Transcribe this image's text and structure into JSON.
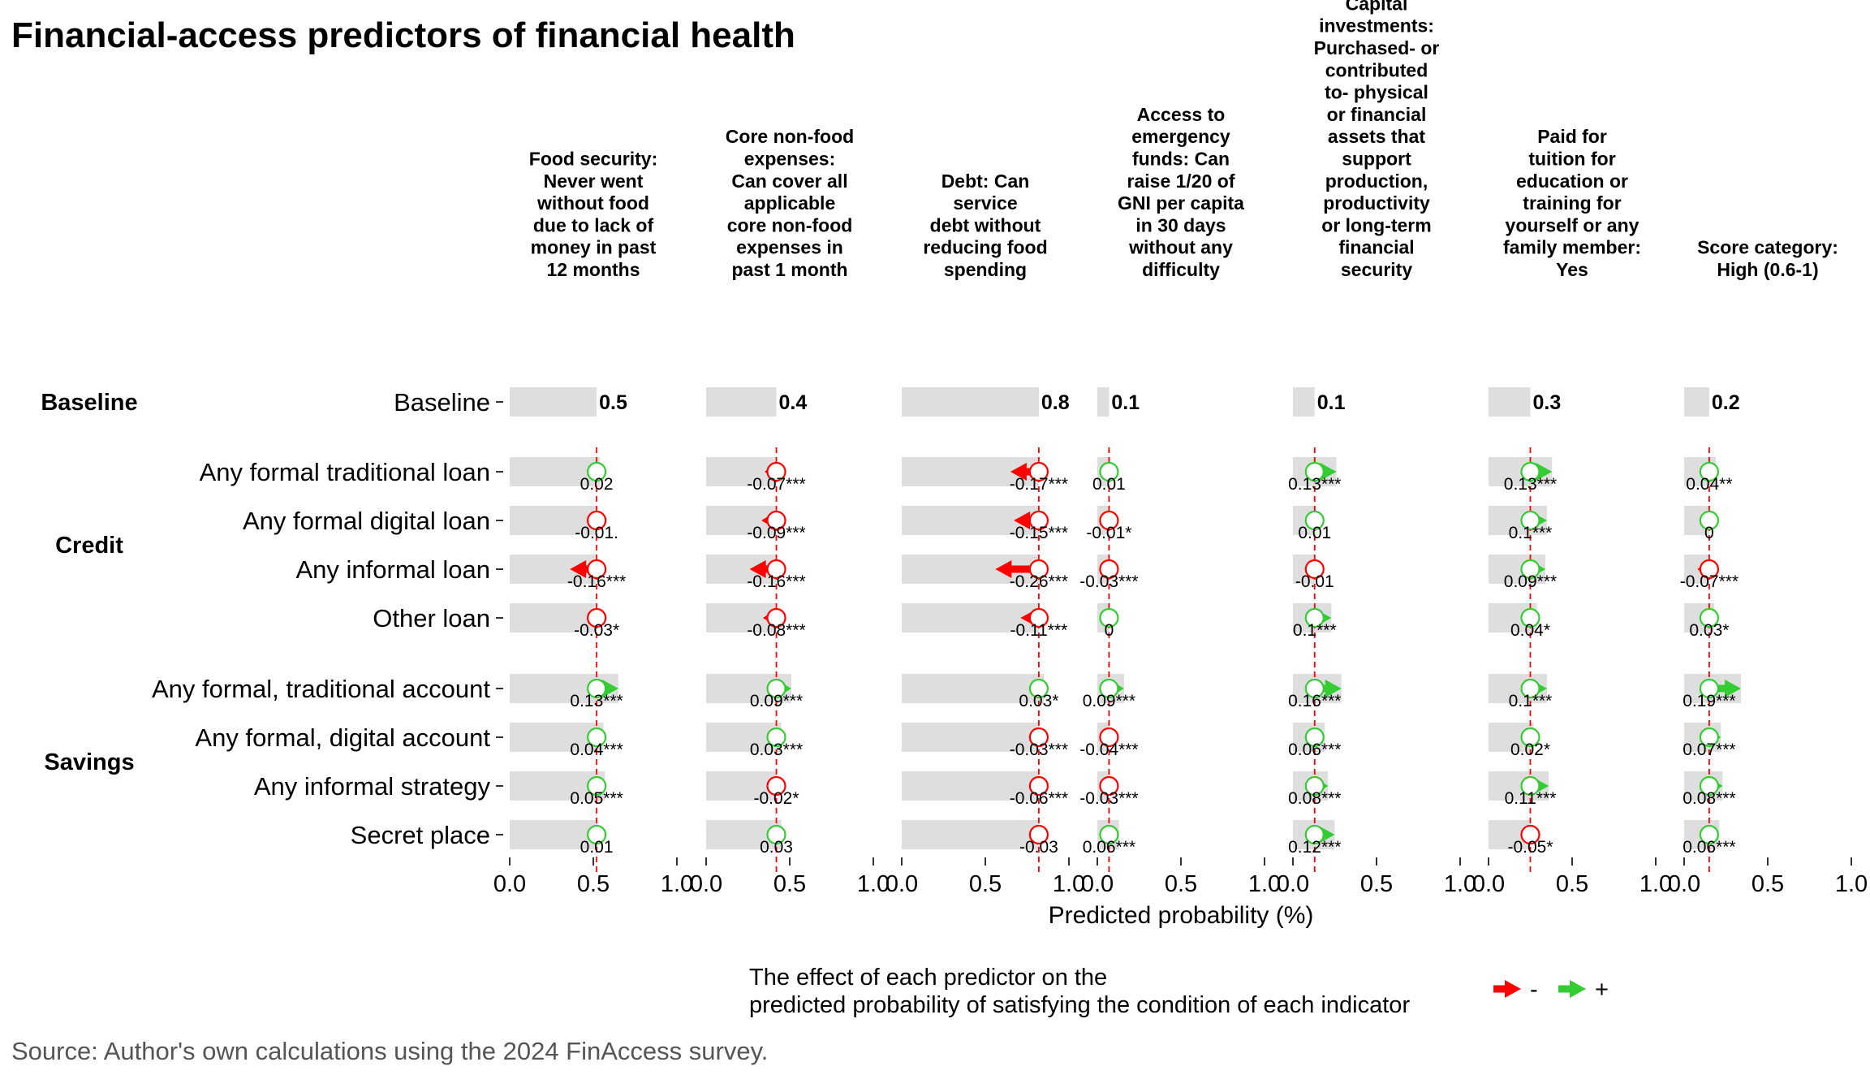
{
  "title": "Financial-access predictors of financial health",
  "source_note": "Source: Author's own calculations using the 2024 FinAccess survey.",
  "colors": {
    "negative": "#ff0000",
    "positive": "#33cc33",
    "bar": "#dedede",
    "reference": "#ff0000"
  },
  "chart_data": {
    "type": "bar",
    "xlabel": "Predicted probability (%)",
    "xlim": [
      0,
      1
    ],
    "xticks": [
      "0.0",
      "0.5",
      "1.0"
    ],
    "grid": false,
    "legend": {
      "title": "The effect of each predictor on the\npredicted probability of satisfying the condition of each indicator",
      "entries": [
        {
          "label": "-",
          "color": "negative"
        },
        {
          "label": "+",
          "color": "positive"
        }
      ],
      "placement": "bottom"
    },
    "groups": [
      {
        "name": "Baseline",
        "rows": [
          "Baseline"
        ]
      },
      {
        "name": "Credit",
        "rows": [
          "Any formal traditional loan",
          "Any formal digital loan",
          "Any informal loan",
          "Other loan"
        ]
      },
      {
        "name": "Savings",
        "rows": [
          "Any formal, traditional account",
          "Any formal, digital account",
          "Any informal strategy",
          "Secret place"
        ]
      }
    ],
    "panels": [
      {
        "title": "Food security:\nNever went\nwithout food\ndue to lack of\nmoney in past\n12 months",
        "baseline": 0.5,
        "baseline_label": "0.5",
        "baseline_value": 0.52,
        "effects": [
          {
            "value": 0.02,
            "label": "0.02"
          },
          {
            "value": -0.01,
            "label": "-0.01."
          },
          {
            "value": -0.16,
            "label": "-0.16***"
          },
          {
            "value": -0.03,
            "label": "-0.03*"
          },
          {
            "value": 0.13,
            "label": "0.13***"
          },
          {
            "value": 0.04,
            "label": "0.04***"
          },
          {
            "value": 0.05,
            "label": "0.05***"
          },
          {
            "value": 0.01,
            "label": "0.01"
          }
        ]
      },
      {
        "title": "Core non-food\nexpenses:\nCan cover all\napplicable\ncore non-food\nexpenses in\npast 1 month",
        "baseline": 0.4,
        "baseline_label": "0.4",
        "baseline_value": 0.42,
        "effects": [
          {
            "value": -0.07,
            "label": "-0.07***"
          },
          {
            "value": -0.09,
            "label": "-0.09***"
          },
          {
            "value": -0.16,
            "label": "-0.16***"
          },
          {
            "value": -0.08,
            "label": "-0.08***"
          },
          {
            "value": 0.09,
            "label": "0.09***"
          },
          {
            "value": 0.03,
            "label": "0.03***"
          },
          {
            "value": -0.02,
            "label": "-0.02*"
          },
          {
            "value": 0.03,
            "label": "0.03"
          }
        ]
      },
      {
        "title": "Debt: Can\nservice\ndebt without\nreducing food\nspending",
        "baseline": 0.8,
        "baseline_label": "0.8",
        "baseline_value": 0.82,
        "effects": [
          {
            "value": -0.17,
            "label": "-0.17***"
          },
          {
            "value": -0.15,
            "label": "-0.15***"
          },
          {
            "value": -0.26,
            "label": "-0.26***"
          },
          {
            "value": -0.11,
            "label": "-0.11***"
          },
          {
            "value": 0.03,
            "label": "0.03*"
          },
          {
            "value": -0.03,
            "label": "-0.03***"
          },
          {
            "value": -0.06,
            "label": "-0.06***"
          },
          {
            "value": -0.03,
            "label": "-0.03"
          }
        ]
      },
      {
        "title": "Access to\nemergency\nfunds: Can\nraise 1/20 of\nGNI per capita\nin 30 days\nwithout any\ndifficulty",
        "baseline": 0.1,
        "baseline_label": "0.1",
        "baseline_value": 0.07,
        "effects": [
          {
            "value": 0.01,
            "label": "0.01"
          },
          {
            "value": -0.01,
            "label": "-0.01*"
          },
          {
            "value": -0.03,
            "label": "-0.03***"
          },
          {
            "value": 0.0,
            "label": "0"
          },
          {
            "value": 0.09,
            "label": "0.09***"
          },
          {
            "value": -0.04,
            "label": "-0.04***"
          },
          {
            "value": -0.03,
            "label": "-0.03***"
          },
          {
            "value": 0.06,
            "label": "0.06***"
          }
        ]
      },
      {
        "title": "Capital\ninvestments:\nPurchased- or\ncontributed\nto- physical\nor financial\nassets that\nsupport\nproduction,\nproductivity\nor long-term\nfinancial\nsecurity",
        "baseline": 0.1,
        "baseline_label": "0.1",
        "baseline_value": 0.13,
        "effects": [
          {
            "value": 0.13,
            "label": "0.13***"
          },
          {
            "value": 0.01,
            "label": "0.01"
          },
          {
            "value": -0.01,
            "label": "-0.01"
          },
          {
            "value": 0.1,
            "label": "0.1***"
          },
          {
            "value": 0.16,
            "label": "0.16***"
          },
          {
            "value": 0.06,
            "label": "0.06***"
          },
          {
            "value": 0.08,
            "label": "0.08***"
          },
          {
            "value": 0.12,
            "label": "0.12***"
          }
        ]
      },
      {
        "title": "Paid for\ntuition for\neducation or\ntraining for\nyourself or any\nfamily member:\nYes",
        "baseline": 0.3,
        "baseline_label": "0.3",
        "baseline_value": 0.25,
        "effects": [
          {
            "value": 0.13,
            "label": "0.13***"
          },
          {
            "value": 0.1,
            "label": "0.1***"
          },
          {
            "value": 0.09,
            "label": "0.09***"
          },
          {
            "value": 0.04,
            "label": "0.04*"
          },
          {
            "value": 0.1,
            "label": "0.1***"
          },
          {
            "value": 0.02,
            "label": "0.02*"
          },
          {
            "value": 0.11,
            "label": "0.11***"
          },
          {
            "value": -0.05,
            "label": "-0.05*"
          }
        ]
      },
      {
        "title": "Score category:\nHigh (0.6-1)",
        "baseline": 0.2,
        "baseline_label": "0.2",
        "baseline_value": 0.15,
        "effects": [
          {
            "value": 0.04,
            "label": "0.04**"
          },
          {
            "value": 0.0,
            "label": "0"
          },
          {
            "value": -0.07,
            "label": "-0.07***"
          },
          {
            "value": 0.03,
            "label": "0.03*"
          },
          {
            "value": 0.19,
            "label": "0.19***"
          },
          {
            "value": 0.07,
            "label": "0.07***"
          },
          {
            "value": 0.08,
            "label": "0.08***"
          },
          {
            "value": 0.06,
            "label": "0.06***"
          }
        ]
      }
    ]
  }
}
